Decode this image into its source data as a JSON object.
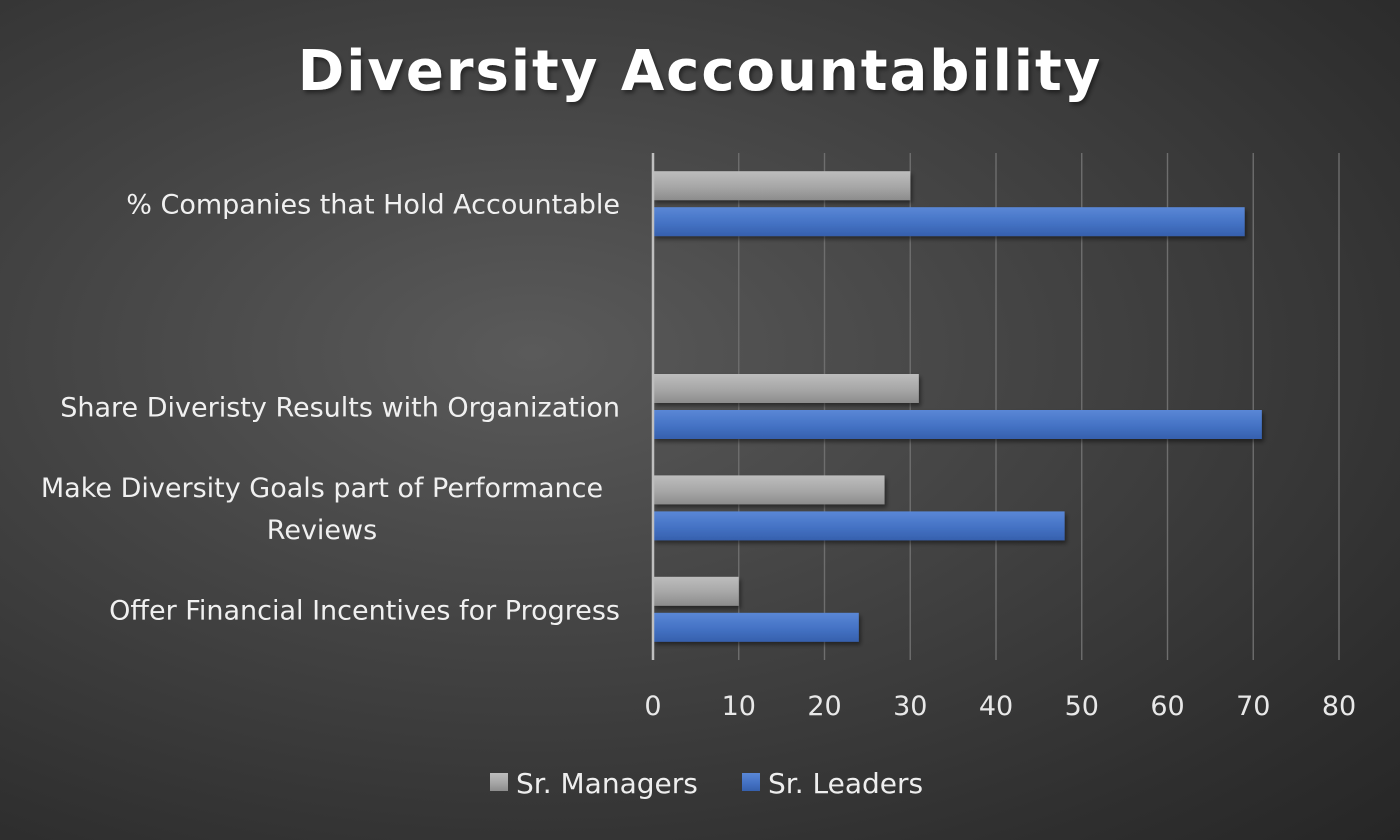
{
  "chart_data": {
    "type": "bar",
    "orientation": "horizontal",
    "title": "Diversity Accountability",
    "categories": [
      [
        "% Companies that Hold Accountable"
      ],
      [],
      [
        "Share Diveristy Results with Organization"
      ],
      [
        "Make Diversity Goals part of Performance",
        "Reviews"
      ],
      [
        "Offer Financial Incentives for Progress"
      ]
    ],
    "series": [
      {
        "name": "Sr. Managers",
        "color": "#a6a6a6",
        "values": [
          30,
          null,
          31,
          27,
          10
        ]
      },
      {
        "name": "Sr. Leaders",
        "color": "#4472c4",
        "values": [
          69,
          null,
          71,
          48,
          24
        ]
      }
    ],
    "xlim": [
      0,
      80
    ],
    "xticks": [
      0,
      10,
      20,
      30,
      40,
      50,
      60,
      70,
      80
    ],
    "grid": true,
    "legend_position": "bottom"
  }
}
